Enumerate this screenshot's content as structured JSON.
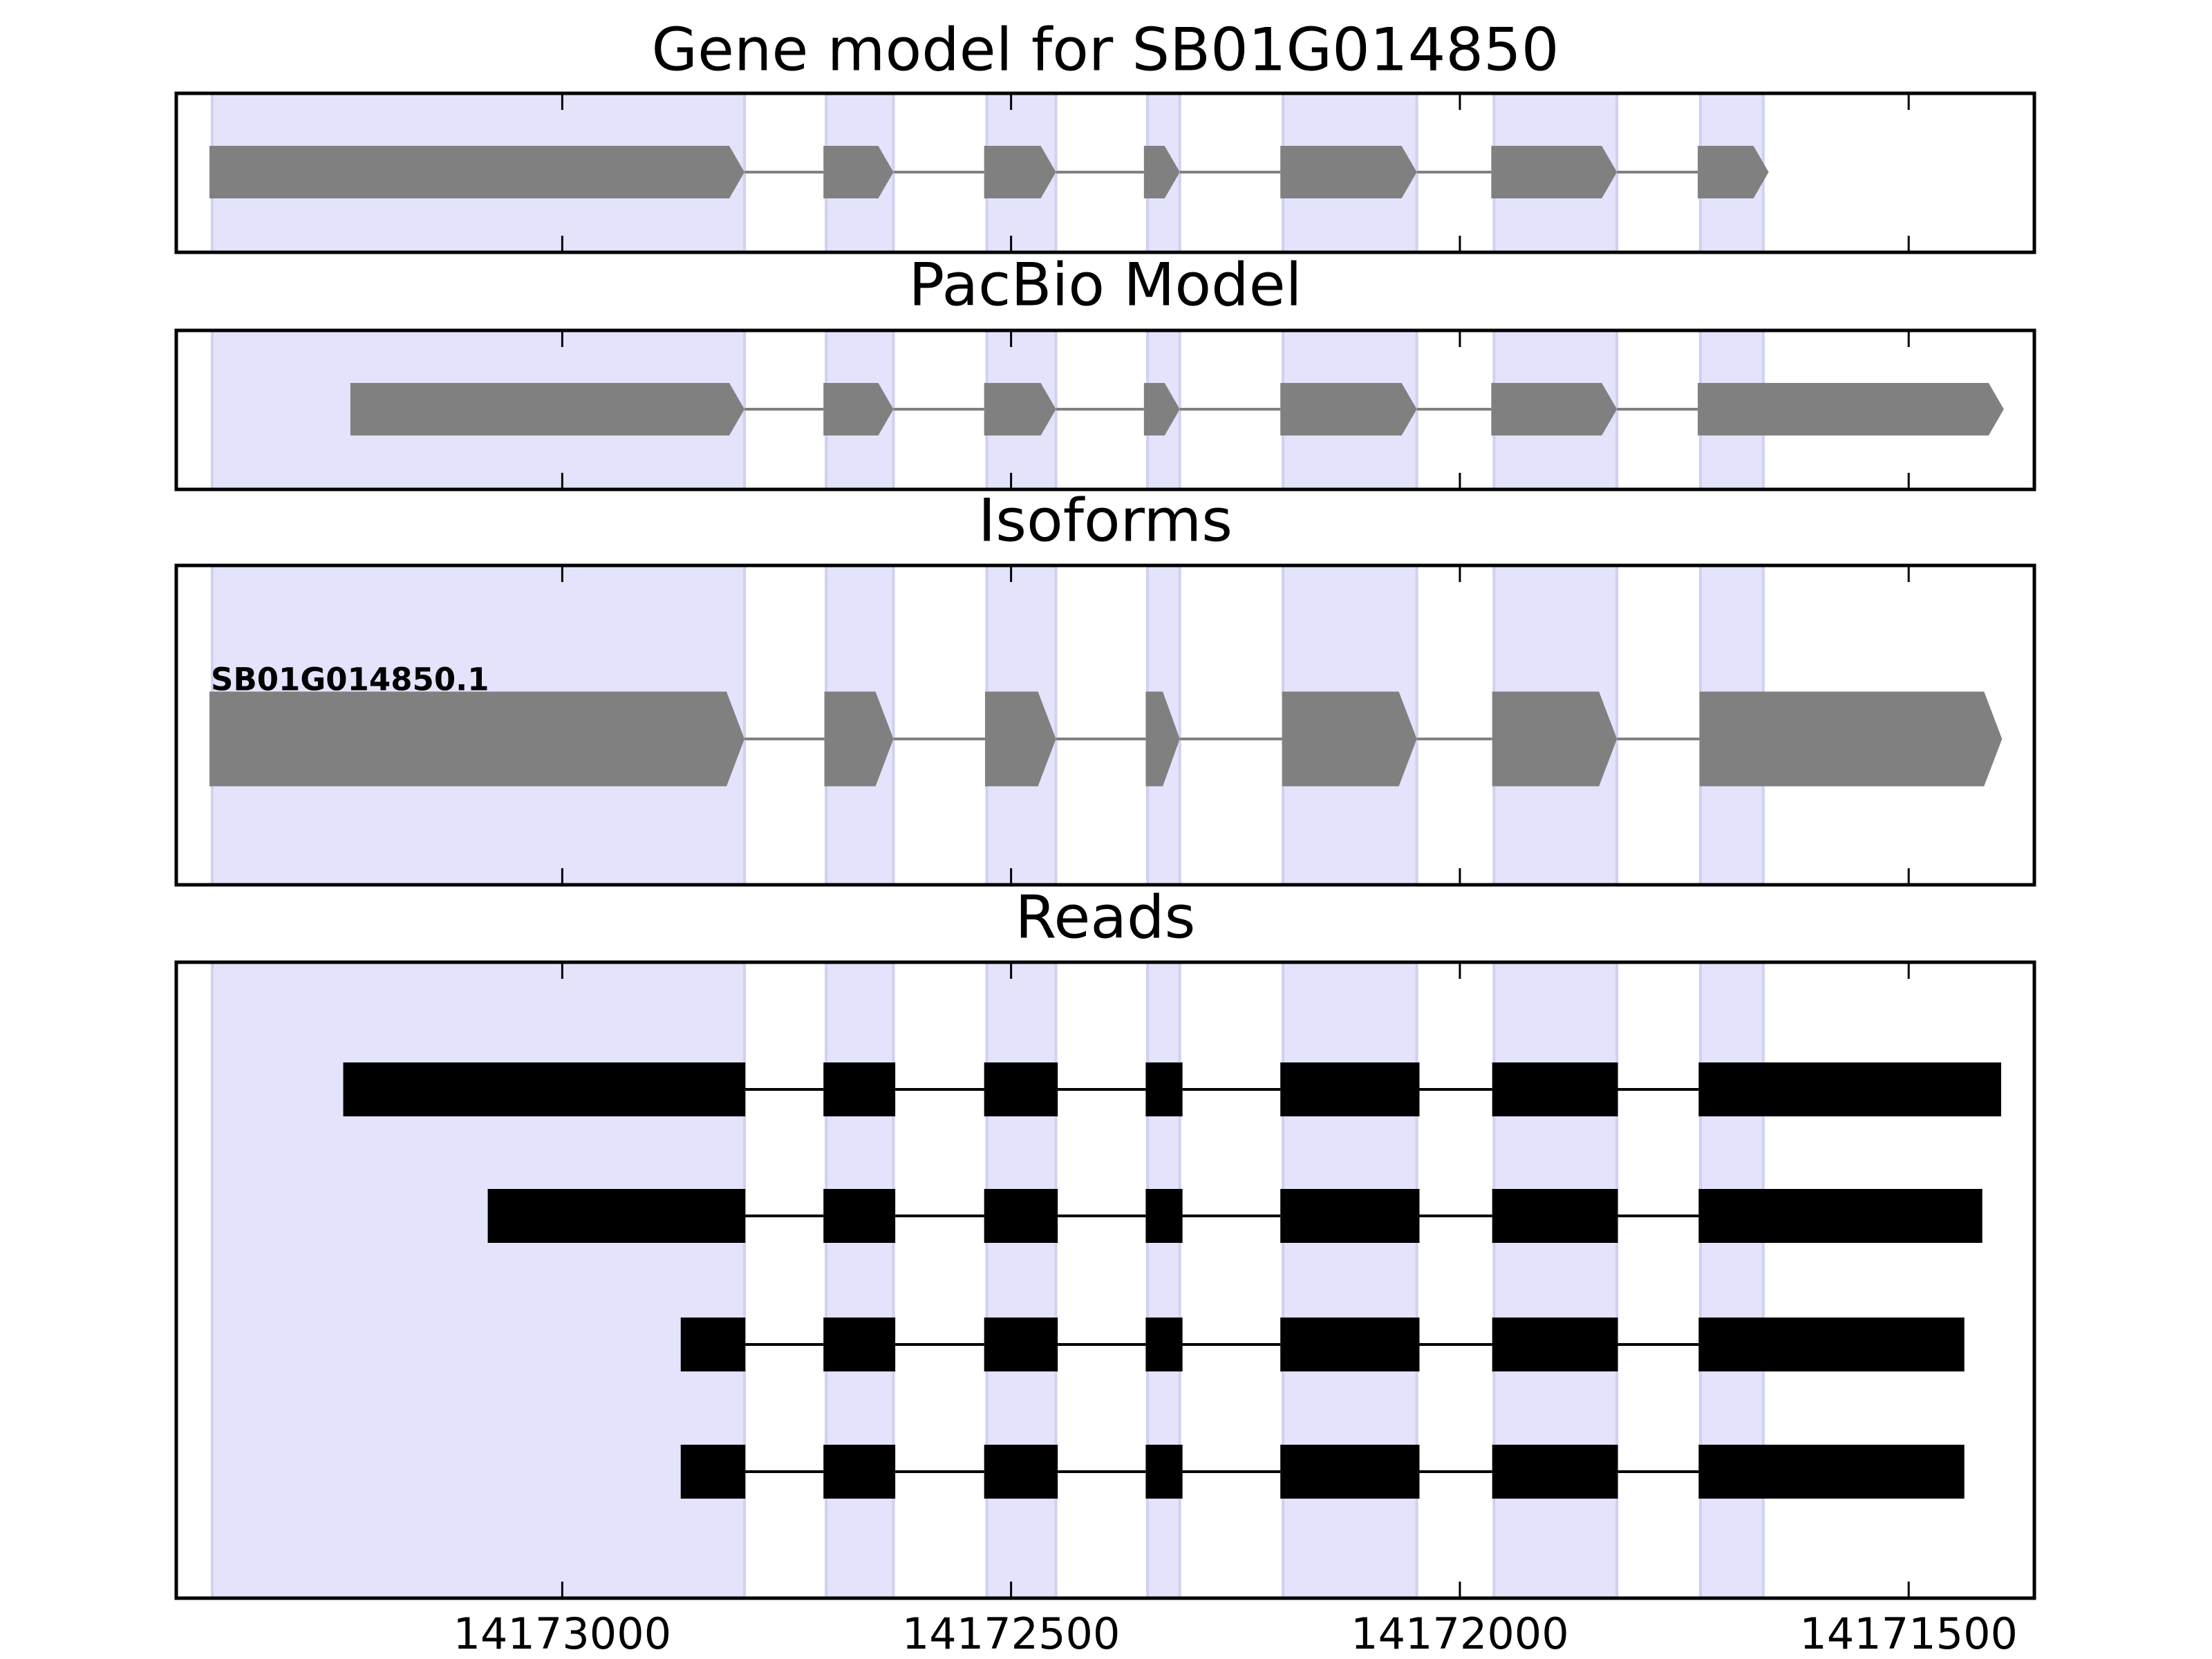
{
  "chart_data": [
    {
      "type": "gene",
      "title": "Gene model for SB01G014850",
      "xlim": [
        14173430,
        14171360
      ],
      "xticks": [
        14173000,
        14172500,
        14172000,
        14171500
      ],
      "regions": [
        [
          14173390,
          14172797
        ],
        [
          14172706,
          14172631
        ],
        [
          14172527,
          14172450
        ],
        [
          14172348,
          14172312
        ],
        [
          14172197,
          14172048
        ],
        [
          14171962,
          14171825
        ],
        [
          14171732,
          14171662
        ]
      ],
      "features": [
        {
          "style": "arrow",
          "color": "#808080",
          "exons": [
            [
              14173393,
              14172797
            ],
            [
              14172709,
              14172631
            ],
            [
              14172530,
              14172450
            ],
            [
              14172352,
              14172312
            ],
            [
              14172200,
              14172048
            ],
            [
              14171965,
              14171825
            ],
            [
              14171735,
              14171656
            ]
          ]
        }
      ]
    },
    {
      "type": "gene",
      "title": "PacBio Model",
      "xlim": [
        14173430,
        14171360
      ],
      "xticks": [
        14173000,
        14172500,
        14172000,
        14171500
      ],
      "regions": [
        [
          14173390,
          14172797
        ],
        [
          14172706,
          14172631
        ],
        [
          14172527,
          14172450
        ],
        [
          14172348,
          14172312
        ],
        [
          14172197,
          14172048
        ],
        [
          14171962,
          14171825
        ],
        [
          14171732,
          14171662
        ]
      ],
      "features": [
        {
          "style": "arrow",
          "color": "#808080",
          "exons": [
            [
              14173236,
              14172797
            ],
            [
              14172709,
              14172631
            ],
            [
              14172530,
              14172450
            ],
            [
              14172352,
              14172312
            ],
            [
              14172200,
              14172048
            ],
            [
              14171965,
              14171825
            ],
            [
              14171735,
              14171394
            ]
          ]
        }
      ]
    },
    {
      "type": "gene",
      "title": "Isoforms",
      "xlim": [
        14173430,
        14171360
      ],
      "xticks": [
        14173000,
        14172500,
        14172000,
        14171500
      ],
      "regions": [
        [
          14173390,
          14172797
        ],
        [
          14172706,
          14172631
        ],
        [
          14172527,
          14172450
        ],
        [
          14172348,
          14172312
        ],
        [
          14172197,
          14172048
        ],
        [
          14171962,
          14171825
        ],
        [
          14171732,
          14171662
        ]
      ],
      "features": [
        {
          "name": "SB01G014850.1",
          "style": "arrow",
          "color": "#808080",
          "exons": [
            [
              14173393,
              14172797
            ],
            [
              14172708,
              14172631
            ],
            [
              14172529,
              14172450
            ],
            [
              14172350,
              14172312
            ],
            [
              14172198,
              14172048
            ],
            [
              14171964,
              14171825
            ],
            [
              14171733,
              14171396
            ]
          ]
        }
      ]
    },
    {
      "type": "gene",
      "title": "Reads",
      "xlim": [
        14173430,
        14171360
      ],
      "xticks": [
        14173000,
        14172500,
        14172000,
        14171500
      ],
      "regions": [
        [
          14173390,
          14172797
        ],
        [
          14172706,
          14172631
        ],
        [
          14172527,
          14172450
        ],
        [
          14172348,
          14172312
        ],
        [
          14172197,
          14172048
        ],
        [
          14171962,
          14171825
        ],
        [
          14171732,
          14171662
        ]
      ],
      "features": [
        {
          "style": "block",
          "color": "#000000",
          "exons": [
            [
              14173244,
              14172796
            ],
            [
              14172709,
              14172629
            ],
            [
              14172530,
              14172448
            ],
            [
              14172350,
              14172309
            ],
            [
              14172200,
              14172045
            ],
            [
              14171964,
              14171824
            ],
            [
              14171734,
              14171397
            ]
          ]
        },
        {
          "style": "block",
          "color": "#000000",
          "exons": [
            [
              14173083,
              14172796
            ],
            [
              14172709,
              14172629
            ],
            [
              14172530,
              14172448
            ],
            [
              14172350,
              14172309
            ],
            [
              14172200,
              14172045
            ],
            [
              14171964,
              14171824
            ],
            [
              14171734,
              14171418
            ]
          ]
        },
        {
          "style": "block",
          "color": "#000000",
          "exons": [
            [
              14172868,
              14172796
            ],
            [
              14172709,
              14172629
            ],
            [
              14172530,
              14172448
            ],
            [
              14172350,
              14172309
            ],
            [
              14172200,
              14172045
            ],
            [
              14171964,
              14171824
            ],
            [
              14171734,
              14171438
            ]
          ]
        },
        {
          "style": "block",
          "color": "#000000",
          "exons": [
            [
              14172868,
              14172796
            ],
            [
              14172709,
              14172629
            ],
            [
              14172530,
              14172448
            ],
            [
              14172350,
              14172309
            ],
            [
              14172200,
              14172045
            ],
            [
              14171964,
              14171824
            ],
            [
              14171734,
              14171438
            ]
          ]
        }
      ]
    }
  ]
}
